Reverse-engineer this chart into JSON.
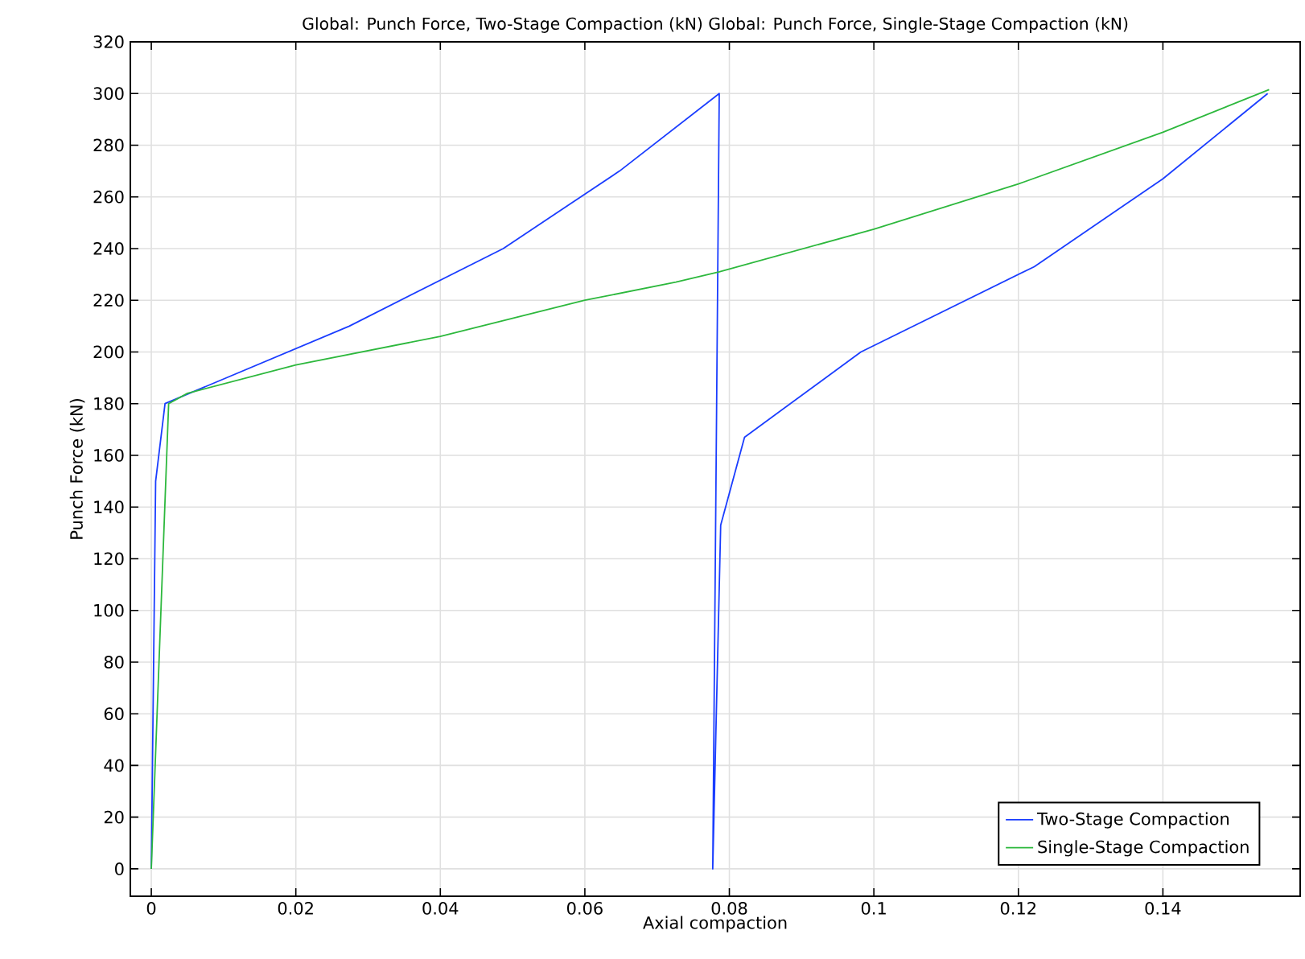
{
  "chart_data": {
    "type": "line",
    "title": "Global: Punch Force, Two-Stage Compaction (kN)  Global: Punch Force, Single-Stage Compaction (kN)",
    "xlabel": "Axial compaction",
    "ylabel": "Punch Force (kN)",
    "xlim": [
      -0.0029,
      0.159
    ],
    "ylim": [
      -10.6,
      320
    ],
    "xticks": [
      0,
      0.02,
      0.04,
      0.06,
      0.08,
      0.1,
      0.12,
      0.14
    ],
    "yticks": [
      0,
      20,
      40,
      60,
      80,
      100,
      120,
      140,
      160,
      180,
      200,
      220,
      240,
      260,
      280,
      300,
      320
    ],
    "grid": true,
    "legend": "bottom right",
    "marker": "none",
    "line_style": "solid",
    "series": [
      {
        "name": "Two-Stage Compaction",
        "color": "#1a3dff",
        "x": [
          0,
          0.0006,
          0.0019,
          0.0274,
          0.0487,
          0.0648,
          0.0786,
          0.0777,
          0.0788,
          0.0821,
          0.0982,
          0.1222,
          0.14,
          0.1545
        ],
        "values": [
          0,
          150,
          180,
          210,
          240,
          270,
          300,
          0,
          133,
          167,
          200,
          233,
          267,
          300
        ]
      },
      {
        "name": "Single-Stage Compaction",
        "color": "#2db83d",
        "x": [
          0,
          0.0024,
          0.005,
          0.02,
          0.04,
          0.06,
          0.0726,
          0.0786,
          0.1,
          0.12,
          0.14,
          0.1547
        ],
        "values": [
          0,
          180,
          184,
          195,
          206,
          220,
          227,
          231,
          247.5,
          265,
          285,
          301.5
        ]
      }
    ]
  }
}
